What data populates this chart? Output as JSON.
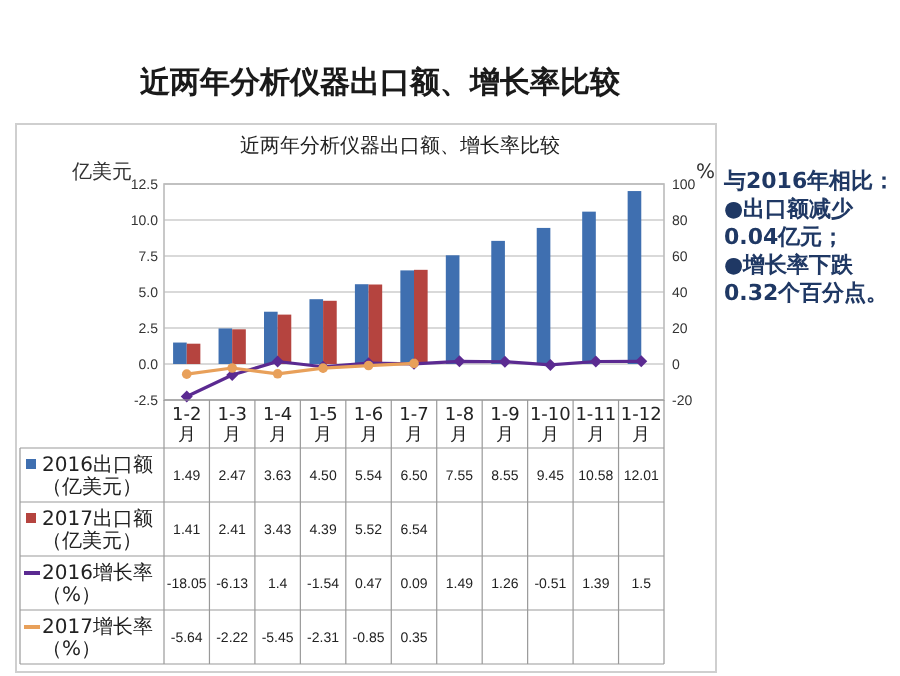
{
  "chart_data": {
    "type": "bar",
    "title": "近两年分析仪器出口额、增长率比较",
    "subtitle": "近两年分析仪器出口额、增长率比较",
    "ylabel": "亿美元",
    "y2label": "%",
    "categories": [
      "1-2月",
      "1-3月",
      "1-4月",
      "1-5月",
      "1-6月",
      "1-7月",
      "1-8月",
      "1-9月",
      "1-10月",
      "1-11月",
      "1-12月"
    ],
    "series": [
      {
        "name": "2016出口额（亿美元）",
        "color": "#3f6fb0",
        "values": [
          1.49,
          2.47,
          3.63,
          4.5,
          5.54,
          6.5,
          7.55,
          8.55,
          9.45,
          10.58,
          12.01
        ],
        "value_labels": [
          "1.49",
          "2.47",
          "3.63",
          "4.50",
          "5.54",
          "6.50",
          "7.55",
          "8.55",
          "9.45",
          "10.58",
          "12.01"
        ]
      },
      {
        "name": "2017出口额（亿美元）",
        "color": "#b5443f",
        "values": [
          1.41,
          2.41,
          3.43,
          4.39,
          5.52,
          6.54,
          null,
          null,
          null,
          null,
          null
        ],
        "value_labels": [
          "1.41",
          "2.41",
          "3.43",
          "4.39",
          "5.52",
          "6.54",
          null,
          null,
          null,
          null,
          null
        ]
      },
      {
        "name": "2016增长率（%）",
        "type": "line",
        "axis": "y2",
        "color": "#5b2a91",
        "marker": "diamond",
        "values": [
          -18.05,
          -6.13,
          1.4,
          -1.54,
          0.47,
          0.09,
          1.49,
          1.26,
          -0.51,
          1.39,
          1.5
        ],
        "value_labels": [
          "-18.05",
          "-6.13",
          "1.4",
          "-1.54",
          "0.47",
          "0.09",
          "1.49",
          "1.26",
          "-0.51",
          "1.39",
          "1.5"
        ]
      },
      {
        "name": "2017增长率（%）",
        "type": "line",
        "axis": "y2",
        "color": "#e8a05a",
        "marker": "circle",
        "values": [
          -5.64,
          -2.22,
          -5.45,
          -2.31,
          -0.85,
          0.35,
          null,
          null,
          null,
          null,
          null
        ],
        "value_labels": [
          "-5.64",
          "-2.22",
          "-5.45",
          "-2.31",
          "-0.85",
          "0.35",
          null,
          null,
          null,
          null,
          null
        ]
      }
    ],
    "ylim": [
      -2.5,
      12.5
    ],
    "yticks": [
      {
        "value": -2.5,
        "label": "-2.5"
      },
      {
        "value": 0,
        "label": "0.0"
      },
      {
        "value": 2.5,
        "label": "2.5"
      },
      {
        "value": 5,
        "label": "5.0"
      },
      {
        "value": 7.5,
        "label": "7.5"
      },
      {
        "value": 10,
        "label": "10.0"
      },
      {
        "value": 12.5,
        "label": "12.5"
      }
    ],
    "y2lim": [
      -20,
      100
    ],
    "y2ticks": [
      -20,
      0,
      20,
      40,
      60,
      80,
      100
    ],
    "grid": "y",
    "legend": "bottom",
    "annotations": [
      "与2016年相比：",
      "●出口额减少0.04亿元；",
      "●增长率下跌0.32个百分点。"
    ]
  }
}
